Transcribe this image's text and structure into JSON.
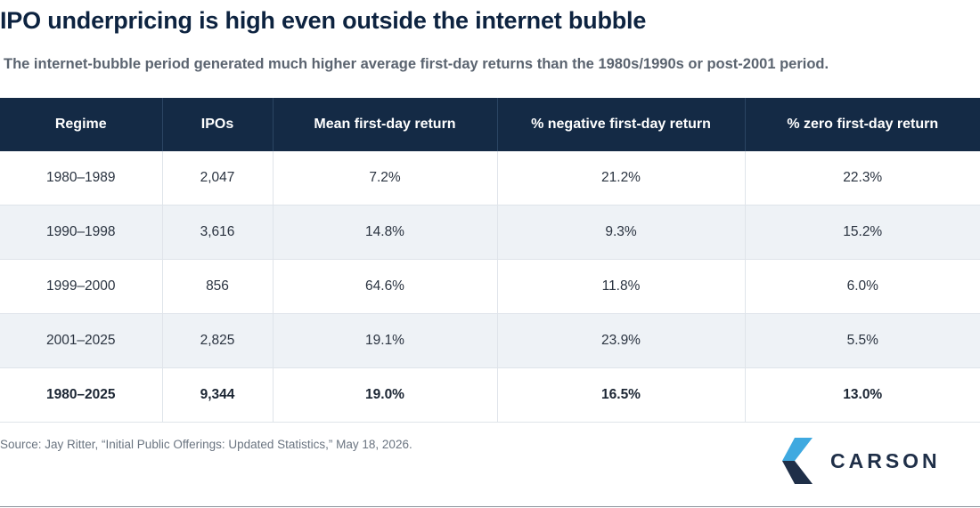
{
  "title": "IPO underpricing is high even outside the internet bubble",
  "subtitle": "The internet-bubble period generated much higher average first-day returns than the 1980s/1990s or post-2001 period.",
  "table": {
    "headers": [
      "Regime",
      "IPOs",
      "Mean first-day return",
      "% negative first-day return",
      "% zero first-day return"
    ],
    "rows": [
      [
        "1980–1989",
        "2,047",
        "7.2%",
        "21.2%",
        "22.3%"
      ],
      [
        "1990–1998",
        "3,616",
        "14.8%",
        "9.3%",
        "15.2%"
      ],
      [
        "1999–2000",
        "856",
        "64.6%",
        "11.8%",
        "6.0%"
      ],
      [
        "2001–2025",
        "2,825",
        "19.1%",
        "23.9%",
        "5.5%"
      ],
      [
        "1980–2025",
        "9,344",
        "19.0%",
        "16.5%",
        "13.0%"
      ]
    ]
  },
  "source": "Source: Jay Ritter, “Initial Public Offerings: Updated Statistics,” May 18, 2026.",
  "logo": {
    "text": "CARSON",
    "icon": "carson-chevron-icon"
  },
  "colors": {
    "header_bg": "#142a45",
    "alt_row": "#eef2f6",
    "logo_light": "#3fa9e0",
    "logo_dark": "#1f2f48"
  }
}
